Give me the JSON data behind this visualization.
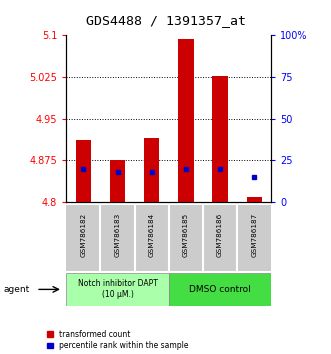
{
  "title": "GDS4488 / 1391357_at",
  "samples": [
    "GSM786182",
    "GSM786183",
    "GSM786184",
    "GSM786185",
    "GSM786186",
    "GSM786187"
  ],
  "red_bar_tops": [
    4.912,
    4.875,
    4.915,
    5.093,
    5.026,
    4.808
  ],
  "red_bar_bottom": 4.8,
  "blue_percentile": [
    20,
    18,
    18,
    20,
    20,
    15
  ],
  "ylim_left": [
    4.8,
    5.1
  ],
  "ylim_right": [
    0,
    100
  ],
  "yticks_left": [
    4.8,
    4.875,
    4.95,
    5.025,
    5.1
  ],
  "ytick_labels_left": [
    "4.8",
    "4.875",
    "4.95",
    "5.025",
    "5.1"
  ],
  "yticks_right": [
    0,
    25,
    50,
    75,
    100
  ],
  "ytick_labels_right": [
    "0",
    "25",
    "50",
    "75",
    "100%"
  ],
  "hlines": [
    4.875,
    4.95,
    5.025
  ],
  "bar_color": "#cc0000",
  "blue_color": "#0000cc",
  "bar_width": 0.45,
  "group1_label": "Notch inhibitor DAPT\n(10 μM.)",
  "group2_label": "DMSO control",
  "group1_color": "#aaffaa",
  "group2_color": "#44dd44",
  "agent_label": "agent",
  "legend_red": "transformed count",
  "legend_blue": "percentile rank within the sample",
  "subplot_bg": "#cccccc",
  "plot_bg": "#ffffff",
  "title_fontsize": 9.5,
  "tick_fontsize": 7
}
